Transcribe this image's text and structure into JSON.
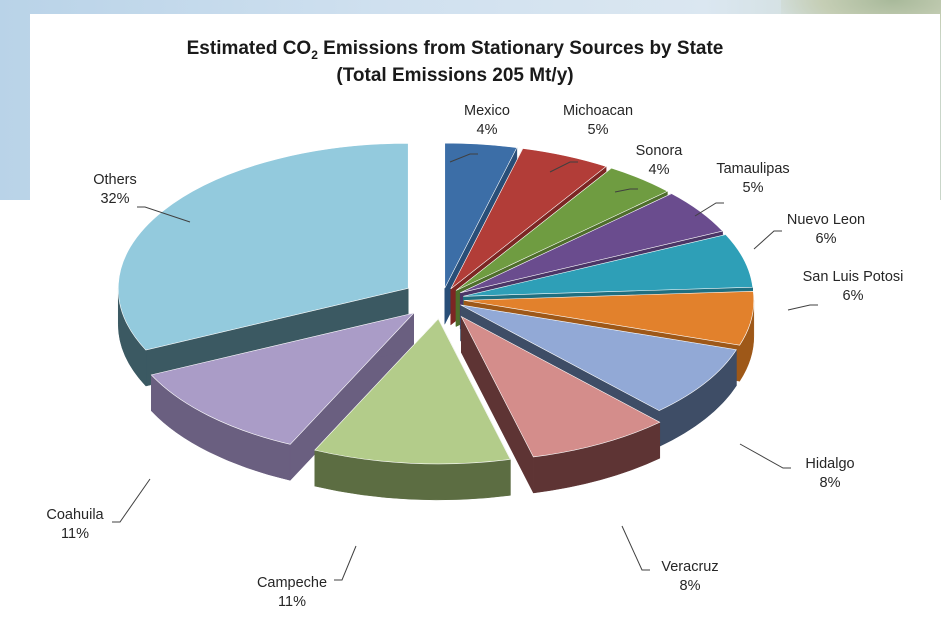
{
  "chart_data": {
    "type": "pie",
    "title": {
      "main_prefix": "Estimated CO",
      "main_subscript": "2",
      "main_suffix": " Emissions from Stationary Sources by State",
      "subtitle": "(Total Emissions 205 Mt/y)"
    },
    "categories": [
      "Mexico",
      "Michoacan",
      "Sonora",
      "Tamaulipas",
      "Nuevo Leon",
      "San Luis Potosi",
      "Hidalgo",
      "Veracruz",
      "Campeche",
      "Coahuila",
      "Others"
    ],
    "values": [
      4,
      5,
      4,
      5,
      6,
      6,
      8,
      8,
      11,
      11,
      32
    ],
    "labels": [
      "4%",
      "5%",
      "4%",
      "5%",
      "6%",
      "6%",
      "8%",
      "8%",
      "11%",
      "11%",
      "32%"
    ],
    "unit": "%",
    "style": "3d exploded pie",
    "colors": [
      "#3c6ea7",
      "#b23d38",
      "#6f9c41",
      "#6a4c8e",
      "#2e9fb7",
      "#e2812c",
      "#92a9d6",
      "#d48d8b",
      "#b3cc8a",
      "#aa9cc7",
      "#93cadd"
    ],
    "side_colors": [
      "#284e78",
      "#7c2623",
      "#4e6e2b",
      "#4b3566",
      "#1f6f80",
      "#9e5818",
      "#3e4d66",
      "#5e3434",
      "#5c6d42",
      "#6a5f80",
      "#3b5962"
    ]
  }
}
